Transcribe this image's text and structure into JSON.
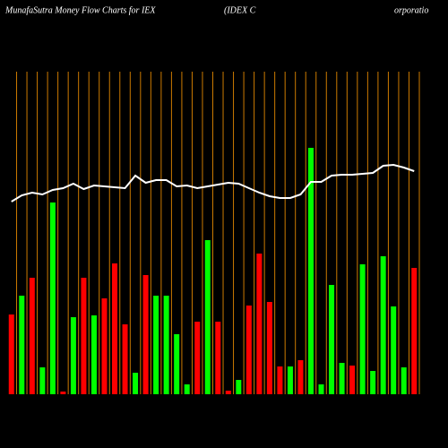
{
  "chart_data": {
    "type": "bar",
    "title": "MunafaSutra  Money Flow  Charts for IEX",
    "subtitle": "(IDEX   C",
    "subtitle2": "orporatio",
    "values": [
      89,
      110,
      130,
      30,
      214,
      3,
      86,
      130,
      88,
      107,
      146,
      78,
      24,
      133,
      110,
      110,
      67,
      11,
      81,
      172,
      81,
      4,
      16,
      99,
      157,
      103,
      31,
      31,
      38,
      275,
      11,
      122,
      35,
      32,
      145,
      26,
      154,
      98,
      30,
      141
    ],
    "colors": [
      "#ff0000",
      "#00ff00",
      "#ff0000",
      "#00ff00",
      "#00ff00",
      "#ff0000",
      "#00ff00",
      "#ff0000",
      "#00ff00",
      "#ff0000",
      "#ff0000",
      "#ff0000",
      "#00ff00",
      "#ff0000",
      "#00ff00",
      "#00ff00",
      "#00ff00",
      "#00ff00",
      "#ff0000",
      "#00ff00",
      "#ff0000",
      "#ff0000",
      "#00ff00",
      "#ff0000",
      "#ff0000",
      "#ff0000",
      "#ff0000",
      "#00ff00",
      "#ff0000",
      "#00ff00",
      "#00ff00",
      "#00ff00",
      "#00ff00",
      "#ff0000",
      "#00ff00",
      "#00ff00",
      "#00ff00",
      "#00ff00",
      "#00ff00",
      "#ff0000"
    ],
    "line": {
      "color": "#ffffff",
      "values": [
        215,
        222,
        225,
        223,
        228,
        230,
        235,
        229,
        233,
        232,
        231,
        230,
        244,
        236,
        239,
        239,
        232,
        233,
        230,
        232,
        234,
        236,
        235,
        230,
        225,
        221,
        219,
        219,
        223,
        237,
        237,
        244,
        245,
        245,
        246,
        247,
        255,
        256,
        253,
        249
      ]
    },
    "ylim": [
      0,
      440
    ],
    "grid_color": "#cc7a00"
  }
}
